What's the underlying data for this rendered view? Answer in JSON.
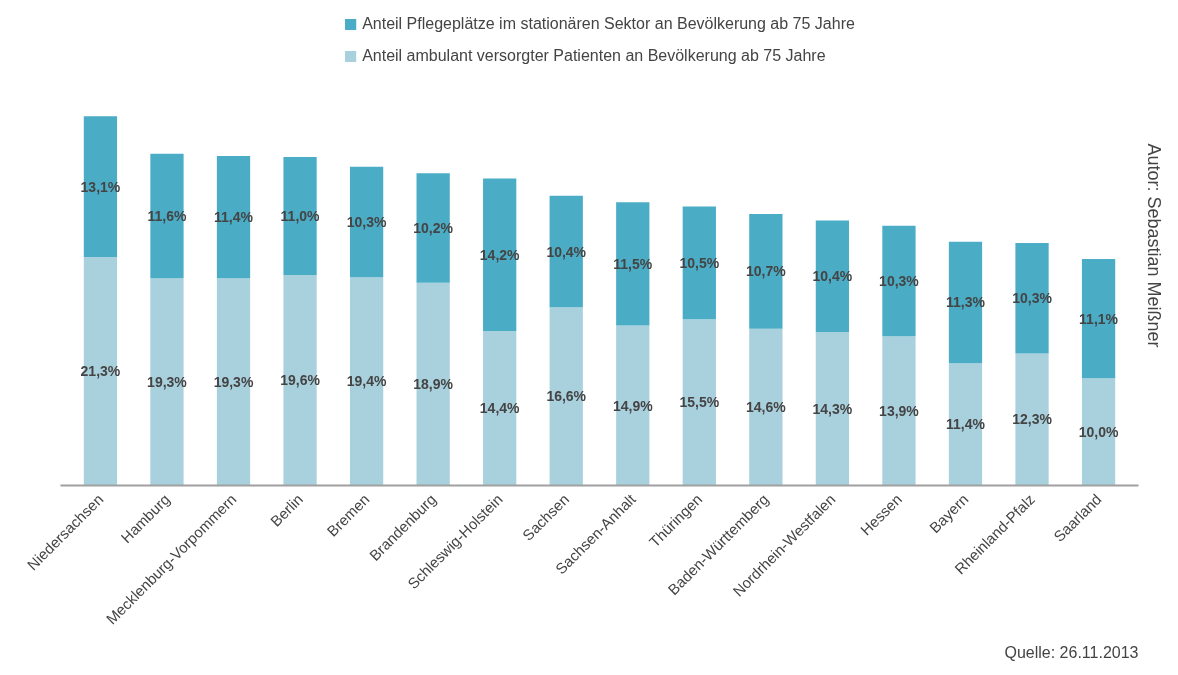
{
  "chart_data": {
    "type": "bar",
    "stacked": true,
    "legend": "top",
    "grid": false,
    "categories": [
      "Niedersachsen",
      "Hamburg",
      "Mecklenburg-Vorpommern",
      "Berlin",
      "Bremen",
      "Brandenburg",
      "Schleswig-Holstein",
      "Sachsen",
      "Sachsen-Anhalt",
      "Thüringen",
      "Baden-Württemberg",
      "Nordrhein-Westfalen",
      "Hessen",
      "Bayern",
      "Rheinland-Pfalz",
      "Saarland"
    ],
    "series": [
      {
        "name": "Anteil ambulant versorgter Patienten an Bevölkerung ab 75 Jahre",
        "color": "#a9d0dd",
        "values": [
          21.3,
          19.3,
          19.3,
          19.6,
          19.4,
          18.9,
          14.4,
          16.6,
          14.9,
          15.5,
          14.6,
          14.3,
          13.9,
          11.4,
          12.3,
          10.0
        ],
        "value_labels": [
          "21,3%",
          "19,3%",
          "19,3%",
          "19,6%",
          "19,4%",
          "18,9%",
          "14,4%",
          "16,6%",
          "14,9%",
          "15,5%",
          "14,6%",
          "14,3%",
          "13,9%",
          "11,4%",
          "12,3%",
          "10,0%"
        ]
      },
      {
        "name": "Anteil Pflegeplätze im stationären Sektor an Bevölkerung ab 75 Jahre",
        "color": "#4bacc6",
        "values": [
          13.1,
          11.6,
          11.4,
          11.0,
          10.3,
          10.2,
          14.2,
          10.4,
          11.5,
          10.5,
          10.7,
          10.4,
          10.3,
          11.3,
          10.3,
          11.1
        ],
        "value_labels": [
          "13,1%",
          "11,6%",
          "11,4%",
          "11,0%",
          "10,3%",
          "10,2%",
          "14,2%",
          "10,4%",
          "11,5%",
          "10,5%",
          "10,7%",
          "10,4%",
          "10,3%",
          "11,3%",
          "10,3%",
          "11,1%"
        ]
      }
    ],
    "annotations": [
      "Quelle: 26.11.2013",
      "Autor: Sebastian Meißner"
    ]
  }
}
